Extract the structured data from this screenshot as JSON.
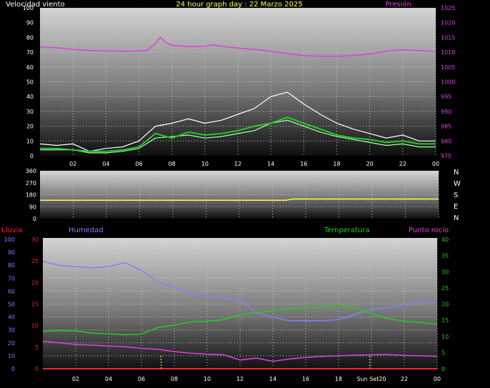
{
  "colors": {
    "white": "#ffffff",
    "yellow": "#ffff44",
    "magenta": "#e040e0",
    "green": "#22cc22",
    "lightgreen": "#aaffaa",
    "blue": "#8080ff",
    "red": "#ff2020",
    "grid": "#cccccc"
  },
  "chart_data": [
    {
      "type": "line",
      "title": "24 hour graph day : 22 Marzo 2025",
      "left_axis_label": "Velocidad viento",
      "right_axis_label": "Presión",
      "x_tick_labels": [
        "02",
        "04",
        "06",
        "08",
        "10",
        "12",
        "14",
        "16",
        "18",
        "20",
        "22",
        "00"
      ],
      "y_left_ticks": [
        "0",
        "10",
        "20",
        "30",
        "40",
        "50",
        "60",
        "70",
        "80",
        "90",
        "100"
      ],
      "y_right_ticks": [
        "975",
        "980",
        "985",
        "990",
        "995",
        "1000",
        "1005",
        "1010",
        "1015",
        "1020",
        "1025"
      ],
      "ylim_left": [
        0,
        100
      ],
      "ylim_right": [
        975,
        1025
      ],
      "series": [
        {
          "name": "Presión",
          "axis": "right",
          "x": [
            0,
            1,
            2,
            3,
            4,
            5,
            6,
            6.5,
            7,
            7.3,
            7.6,
            8,
            9,
            10,
            10.5,
            11,
            12,
            13,
            14,
            15,
            16,
            17,
            18,
            19,
            20,
            21,
            22,
            23,
            24
          ],
          "y": [
            1011.8,
            1011.5,
            1011,
            1010.6,
            1010.4,
            1010.3,
            1010.4,
            1010.6,
            1013,
            1015,
            1013.5,
            1012.3,
            1011.9,
            1012,
            1012.5,
            1012,
            1011.4,
            1011,
            1010.3,
            1009.6,
            1008.9,
            1008.6,
            1008.6,
            1008.9,
            1009.5,
            1010.3,
            1010.8,
            1010.6,
            1010.2
          ]
        },
        {
          "name": "gust",
          "axis": "left",
          "x": [
            0,
            1,
            2,
            3,
            4,
            5,
            6,
            7,
            8,
            9,
            10,
            11,
            12,
            13,
            14,
            15,
            16,
            17,
            18,
            19,
            20,
            21,
            22,
            23,
            24
          ],
          "y": [
            8,
            7,
            8,
            3,
            5,
            6,
            10,
            20,
            22,
            25,
            22,
            24,
            28,
            32,
            40,
            43,
            35,
            28,
            22,
            18,
            15,
            12,
            14,
            10,
            10
          ]
        },
        {
          "name": "wind",
          "axis": "left",
          "x": [
            0,
            1,
            2,
            3,
            4,
            5,
            6,
            7,
            8,
            9,
            10,
            11,
            12,
            13,
            14,
            15,
            16,
            17,
            18,
            19,
            20,
            21,
            22,
            23,
            24
          ],
          "y": [
            4,
            4,
            4,
            2,
            2,
            3,
            5,
            12,
            13,
            14,
            12,
            13,
            15,
            17,
            22,
            24,
            20,
            16,
            13,
            11,
            9,
            7,
            8,
            6,
            6
          ]
        },
        {
          "name": "avg",
          "axis": "left",
          "x": [
            0,
            1,
            2,
            3,
            4,
            5,
            6,
            7,
            8,
            9,
            10,
            11,
            12,
            13,
            14,
            15,
            16,
            17,
            18,
            19,
            20,
            21,
            22,
            23,
            24
          ],
          "y": [
            5,
            5,
            4,
            3,
            3,
            4,
            6,
            15,
            12,
            16,
            14,
            15,
            17,
            20,
            22,
            26,
            22,
            18,
            14,
            12,
            11,
            9,
            10,
            8,
            8
          ]
        }
      ]
    },
    {
      "type": "line",
      "y_ticks": [
        "0",
        "90",
        "180",
        "270",
        "360"
      ],
      "ylim": [
        0,
        360
      ],
      "right_labels": [
        "N",
        "W",
        "S",
        "E",
        "N"
      ],
      "series": [
        {
          "name": "direction",
          "x": [
            0,
            14.8,
            15.2,
            24
          ],
          "y": [
            138,
            138,
            148,
            148
          ]
        }
      ]
    },
    {
      "type": "line",
      "labels": {
        "rain": "Lluvia",
        "humidity": "Humedad",
        "temperature": "Temperatura",
        "dewpoint": "Punto rocío"
      },
      "x_tick_labels": [
        "02",
        "04",
        "06",
        "08",
        "10",
        "12",
        "14",
        "16",
        "18",
        "Sun Set20",
        "22",
        "00"
      ],
      "y_left_ticks": [
        "0",
        "10",
        "20",
        "30",
        "40",
        "50",
        "60",
        "70",
        "80",
        "90",
        "100"
      ],
      "y_rain_ticks": [
        "0",
        "5",
        "10",
        "15",
        "20",
        "25",
        "30"
      ],
      "y_right_ticks": [
        "0",
        "5",
        "10",
        "15",
        "20",
        "25",
        "30",
        "35",
        "40"
      ],
      "ylim_left": [
        0,
        100
      ],
      "ylim_right": [
        0,
        40
      ],
      "markers_x": [
        7.2,
        19.9
      ],
      "series": [
        {
          "name": "Humedad",
          "axis": "left",
          "x": [
            0,
            1,
            2,
            3,
            4,
            5,
            6,
            7,
            8,
            9,
            10,
            11,
            12,
            13,
            14,
            15,
            16,
            17,
            18,
            19,
            20,
            21,
            22,
            23,
            24
          ],
          "y": [
            83,
            80,
            79,
            78,
            79,
            82,
            76,
            67,
            63,
            58,
            56,
            55,
            53,
            43,
            40,
            37,
            37,
            37,
            38,
            42,
            46,
            47,
            49,
            52,
            51
          ]
        },
        {
          "name": "Temperatura",
          "axis": "right",
          "x": [
            0,
            1,
            2,
            3,
            4,
            5,
            6,
            7,
            8,
            9,
            10,
            11,
            12,
            13,
            14,
            15,
            16,
            17,
            18,
            19,
            20,
            21,
            22,
            23,
            24
          ],
          "y": [
            11.5,
            11.8,
            11.7,
            11.0,
            10.8,
            10.5,
            10.7,
            12.7,
            13.5,
            14.5,
            14.7,
            15.2,
            16.8,
            17.2,
            18.0,
            18.5,
            18.8,
            19.0,
            19.5,
            18.8,
            17.0,
            15.5,
            14.7,
            14.3,
            13.8
          ]
        },
        {
          "name": "Punto rocío",
          "axis": "right",
          "x": [
            0,
            1,
            2,
            3,
            4,
            5,
            6,
            7,
            8,
            9,
            10,
            11,
            12,
            13,
            14,
            15,
            16,
            17,
            18,
            19,
            20,
            21,
            22,
            23,
            24
          ],
          "y": [
            8.5,
            8.0,
            7.5,
            7.3,
            7.0,
            6.8,
            6.3,
            6.0,
            5.3,
            4.8,
            4.5,
            4.3,
            2.7,
            3.3,
            2.3,
            3.0,
            3.5,
            3.8,
            4.0,
            4.2,
            4.3,
            4.4,
            4.1,
            4.0,
            3.8
          ]
        },
        {
          "name": "Lluvia",
          "axis": "left",
          "x": [
            0,
            24
          ],
          "y": [
            0,
            0
          ]
        }
      ]
    }
  ]
}
